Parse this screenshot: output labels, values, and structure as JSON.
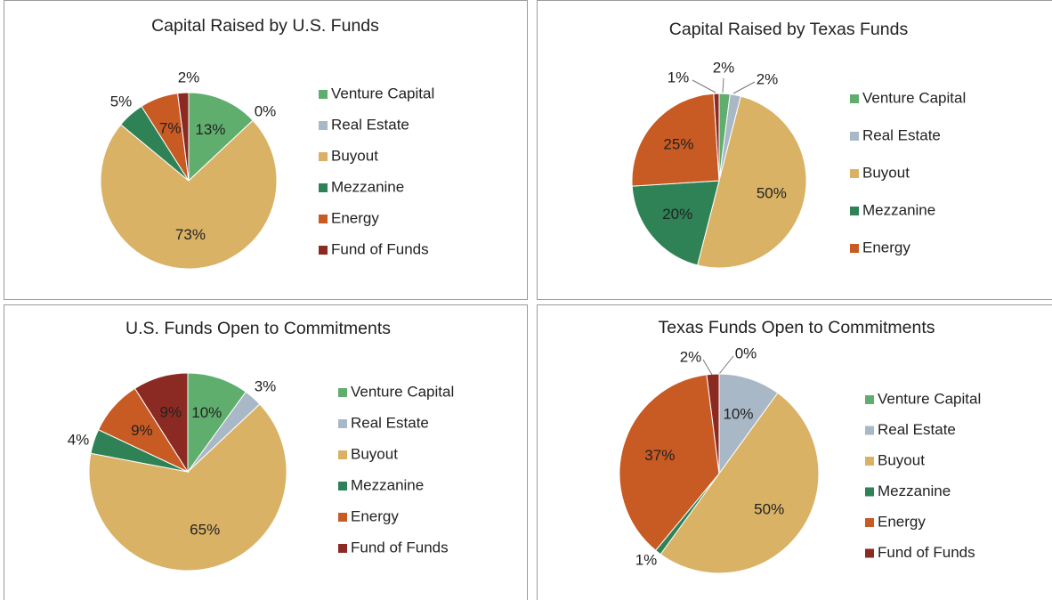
{
  "chart_data": [
    {
      "type": "pie",
      "title": "Capital Raised by U.S. Funds",
      "categories": [
        "Venture Capital",
        "Real Estate",
        "Buyout",
        "Mezzanine",
        "Energy",
        "Fund of Funds"
      ],
      "values": [
        13,
        0,
        73,
        5,
        7,
        2
      ],
      "value_labels": [
        "13%",
        "0%",
        "73%",
        "5%",
        "7%",
        "2%"
      ],
      "colors": [
        "#5fae6d",
        "#a9b8c6",
        "#d9b266",
        "#2e8256",
        "#c85a23",
        "#8b2a22"
      ]
    },
    {
      "type": "pie",
      "title": "Capital Raised by Texas Funds",
      "categories": [
        "Venture Capital",
        "Real Estate",
        "Buyout",
        "Mezzanine",
        "Energy",
        null
      ],
      "values": [
        2,
        2,
        50,
        20,
        25,
        1
      ],
      "value_labels": [
        "2%",
        "2%",
        "50%",
        "20%",
        "25%",
        "1%"
      ],
      "colors": [
        "#5fae6d",
        "#a9b8c6",
        "#d9b266",
        "#2e8256",
        "#c85a23",
        "#8b2a22"
      ]
    },
    {
      "type": "pie",
      "title": "U.S. Funds Open to Commitments",
      "categories": [
        "Venture Capital",
        "Real Estate",
        "Buyout",
        "Mezzanine",
        "Energy",
        "Fund of Funds"
      ],
      "values": [
        10,
        3,
        65,
        4,
        9,
        9
      ],
      "value_labels": [
        "10%",
        "3%",
        "65%",
        "4%",
        "9%",
        "9%"
      ],
      "colors": [
        "#5fae6d",
        "#a9b8c6",
        "#d9b266",
        "#2e8256",
        "#c85a23",
        "#8b2a22"
      ]
    },
    {
      "type": "pie",
      "title": "Texas Funds Open to Commitments",
      "categories": [
        "Venture Capital",
        "Real Estate",
        "Buyout",
        "Mezzanine",
        "Energy",
        "Fund of Funds"
      ],
      "values": [
        0,
        10,
        50,
        1,
        37,
        2
      ],
      "value_labels": [
        "0%",
        "10%",
        "50%",
        "1%",
        "37%",
        "2%"
      ],
      "colors": [
        "#5fae6d",
        "#a9b8c6",
        "#d9b266",
        "#2e8256",
        "#c85a23",
        "#8b2a22"
      ]
    }
  ]
}
